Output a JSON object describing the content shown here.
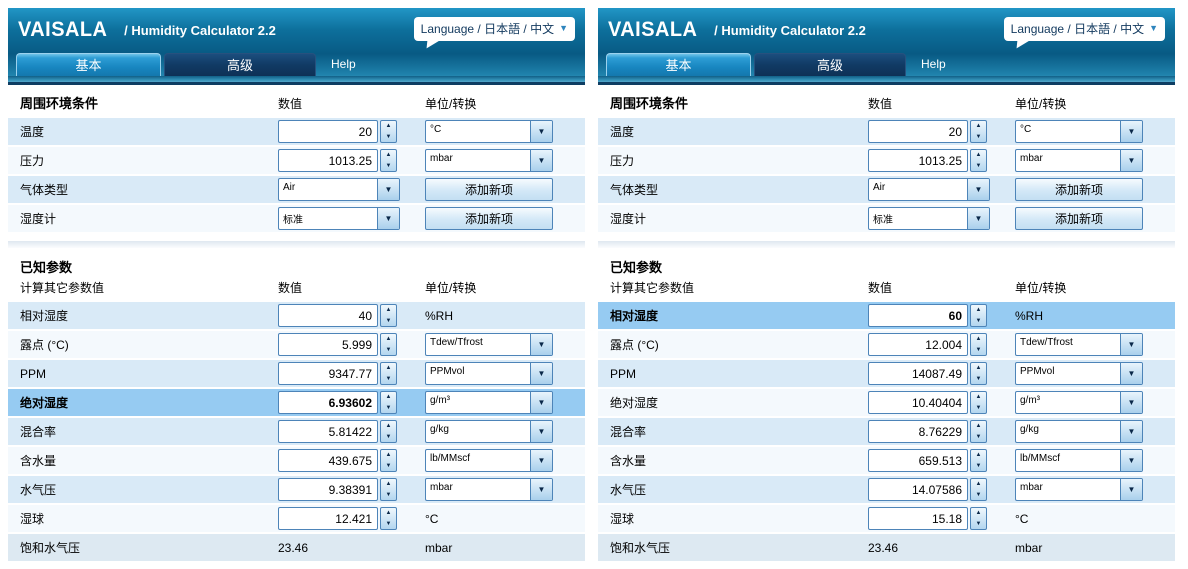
{
  "shared": {
    "logo": "VAISALA",
    "title": "/ Humidity Calculator 2.2",
    "language": "Language / 日本語 / 中文",
    "tabs": {
      "basic": "基本",
      "advanced": "高级",
      "help": "Help"
    },
    "ambient": {
      "title": "周围环境条件",
      "col_value": "数值",
      "col_unit": "单位/转换"
    },
    "known": {
      "title": "已知参数",
      "subtitle": "计算其它参数值",
      "col_value": "数值",
      "col_unit": "单位/转换"
    },
    "icons": {
      "chevron_down": "▼",
      "spinner_up": "▲",
      "spinner_down": "▼"
    }
  },
  "colors": {
    "accent": "#1b8cc8",
    "header-light": "#2196c6",
    "header-dark": "#085a84",
    "navy": "#0e3d62",
    "border": "#4d84b8",
    "row-blue": "#d9eaf7",
    "row-light": "#f4f9fd",
    "highlight": "#96cbf2"
  },
  "panels": [
    {
      "ambient_rows": [
        {
          "label": "温度",
          "control": "input",
          "value": "20",
          "unit_control": "select",
          "unit": "°C"
        },
        {
          "label": "压力",
          "control": "input",
          "value": "1013.25",
          "unit_control": "select",
          "unit": "mbar"
        },
        {
          "label": "气体类型",
          "control": "select",
          "value": "Air",
          "unit_control": "button",
          "unit": "添加新项"
        },
        {
          "label": "湿度计",
          "control": "select",
          "value": "标准",
          "unit_control": "button",
          "unit": "添加新项"
        }
      ],
      "known_rows": [
        {
          "label": "相对湿度",
          "control": "input",
          "value": "40",
          "unit_control": "text",
          "unit": "%RH",
          "highlight": false
        },
        {
          "label": "露点 (°C)",
          "control": "input",
          "value": "5.999",
          "unit_control": "select",
          "unit": "Tdew/Tfrost",
          "highlight": false
        },
        {
          "label": "PPM",
          "control": "input",
          "value": "9347.77",
          "unit_control": "select",
          "unit": "PPMvol",
          "highlight": false
        },
        {
          "label": "绝对湿度",
          "control": "input",
          "value": "6.93602",
          "unit_control": "select",
          "unit": "g/m³",
          "highlight": true
        },
        {
          "label": "混合率",
          "control": "input",
          "value": "5.81422",
          "unit_control": "select",
          "unit": "g/kg",
          "highlight": false
        },
        {
          "label": "含水量",
          "control": "input",
          "value": "439.675",
          "unit_control": "select",
          "unit": "lb/MMscf",
          "highlight": false
        },
        {
          "label": "水气压",
          "control": "input",
          "value": "9.38391",
          "unit_control": "select",
          "unit": "mbar",
          "highlight": false
        },
        {
          "label": "湿球",
          "control": "input",
          "value": "12.421",
          "unit_control": "text",
          "unit": "°C",
          "highlight": false
        },
        {
          "label": "饱和水气压",
          "control": "text",
          "value": "23.46",
          "unit_control": "text",
          "unit": "mbar",
          "highlight": false
        }
      ]
    },
    {
      "ambient_rows": [
        {
          "label": "温度",
          "control": "input",
          "value": "20",
          "unit_control": "select",
          "unit": "°C"
        },
        {
          "label": "压力",
          "control": "input",
          "value": "1013.25",
          "unit_control": "select",
          "unit": "mbar"
        },
        {
          "label": "气体类型",
          "control": "select",
          "value": "Air",
          "unit_control": "button",
          "unit": "添加新项"
        },
        {
          "label": "湿度计",
          "control": "select",
          "value": "标准",
          "unit_control": "button",
          "unit": "添加新项"
        }
      ],
      "known_rows": [
        {
          "label": "相对湿度",
          "control": "input",
          "value": "60",
          "unit_control": "text",
          "unit": "%RH",
          "highlight": true
        },
        {
          "label": "露点 (°C)",
          "control": "input",
          "value": "12.004",
          "unit_control": "select",
          "unit": "Tdew/Tfrost",
          "highlight": false
        },
        {
          "label": "PPM",
          "control": "input",
          "value": "14087.49",
          "unit_control": "select",
          "unit": "PPMvol",
          "highlight": false
        },
        {
          "label": "绝对湿度",
          "control": "input",
          "value": "10.40404",
          "unit_control": "select",
          "unit": "g/m³",
          "highlight": false
        },
        {
          "label": "混合率",
          "control": "input",
          "value": "8.76229",
          "unit_control": "select",
          "unit": "g/kg",
          "highlight": false
        },
        {
          "label": "含水量",
          "control": "input",
          "value": "659.513",
          "unit_control": "select",
          "unit": "lb/MMscf",
          "highlight": false
        },
        {
          "label": "水气压",
          "control": "input",
          "value": "14.07586",
          "unit_control": "select",
          "unit": "mbar",
          "highlight": false
        },
        {
          "label": "湿球",
          "control": "input",
          "value": "15.18",
          "unit_control": "text",
          "unit": "°C",
          "highlight": false
        },
        {
          "label": "饱和水气压",
          "control": "text",
          "value": "23.46",
          "unit_control": "text",
          "unit": "mbar",
          "highlight": false
        }
      ]
    }
  ]
}
